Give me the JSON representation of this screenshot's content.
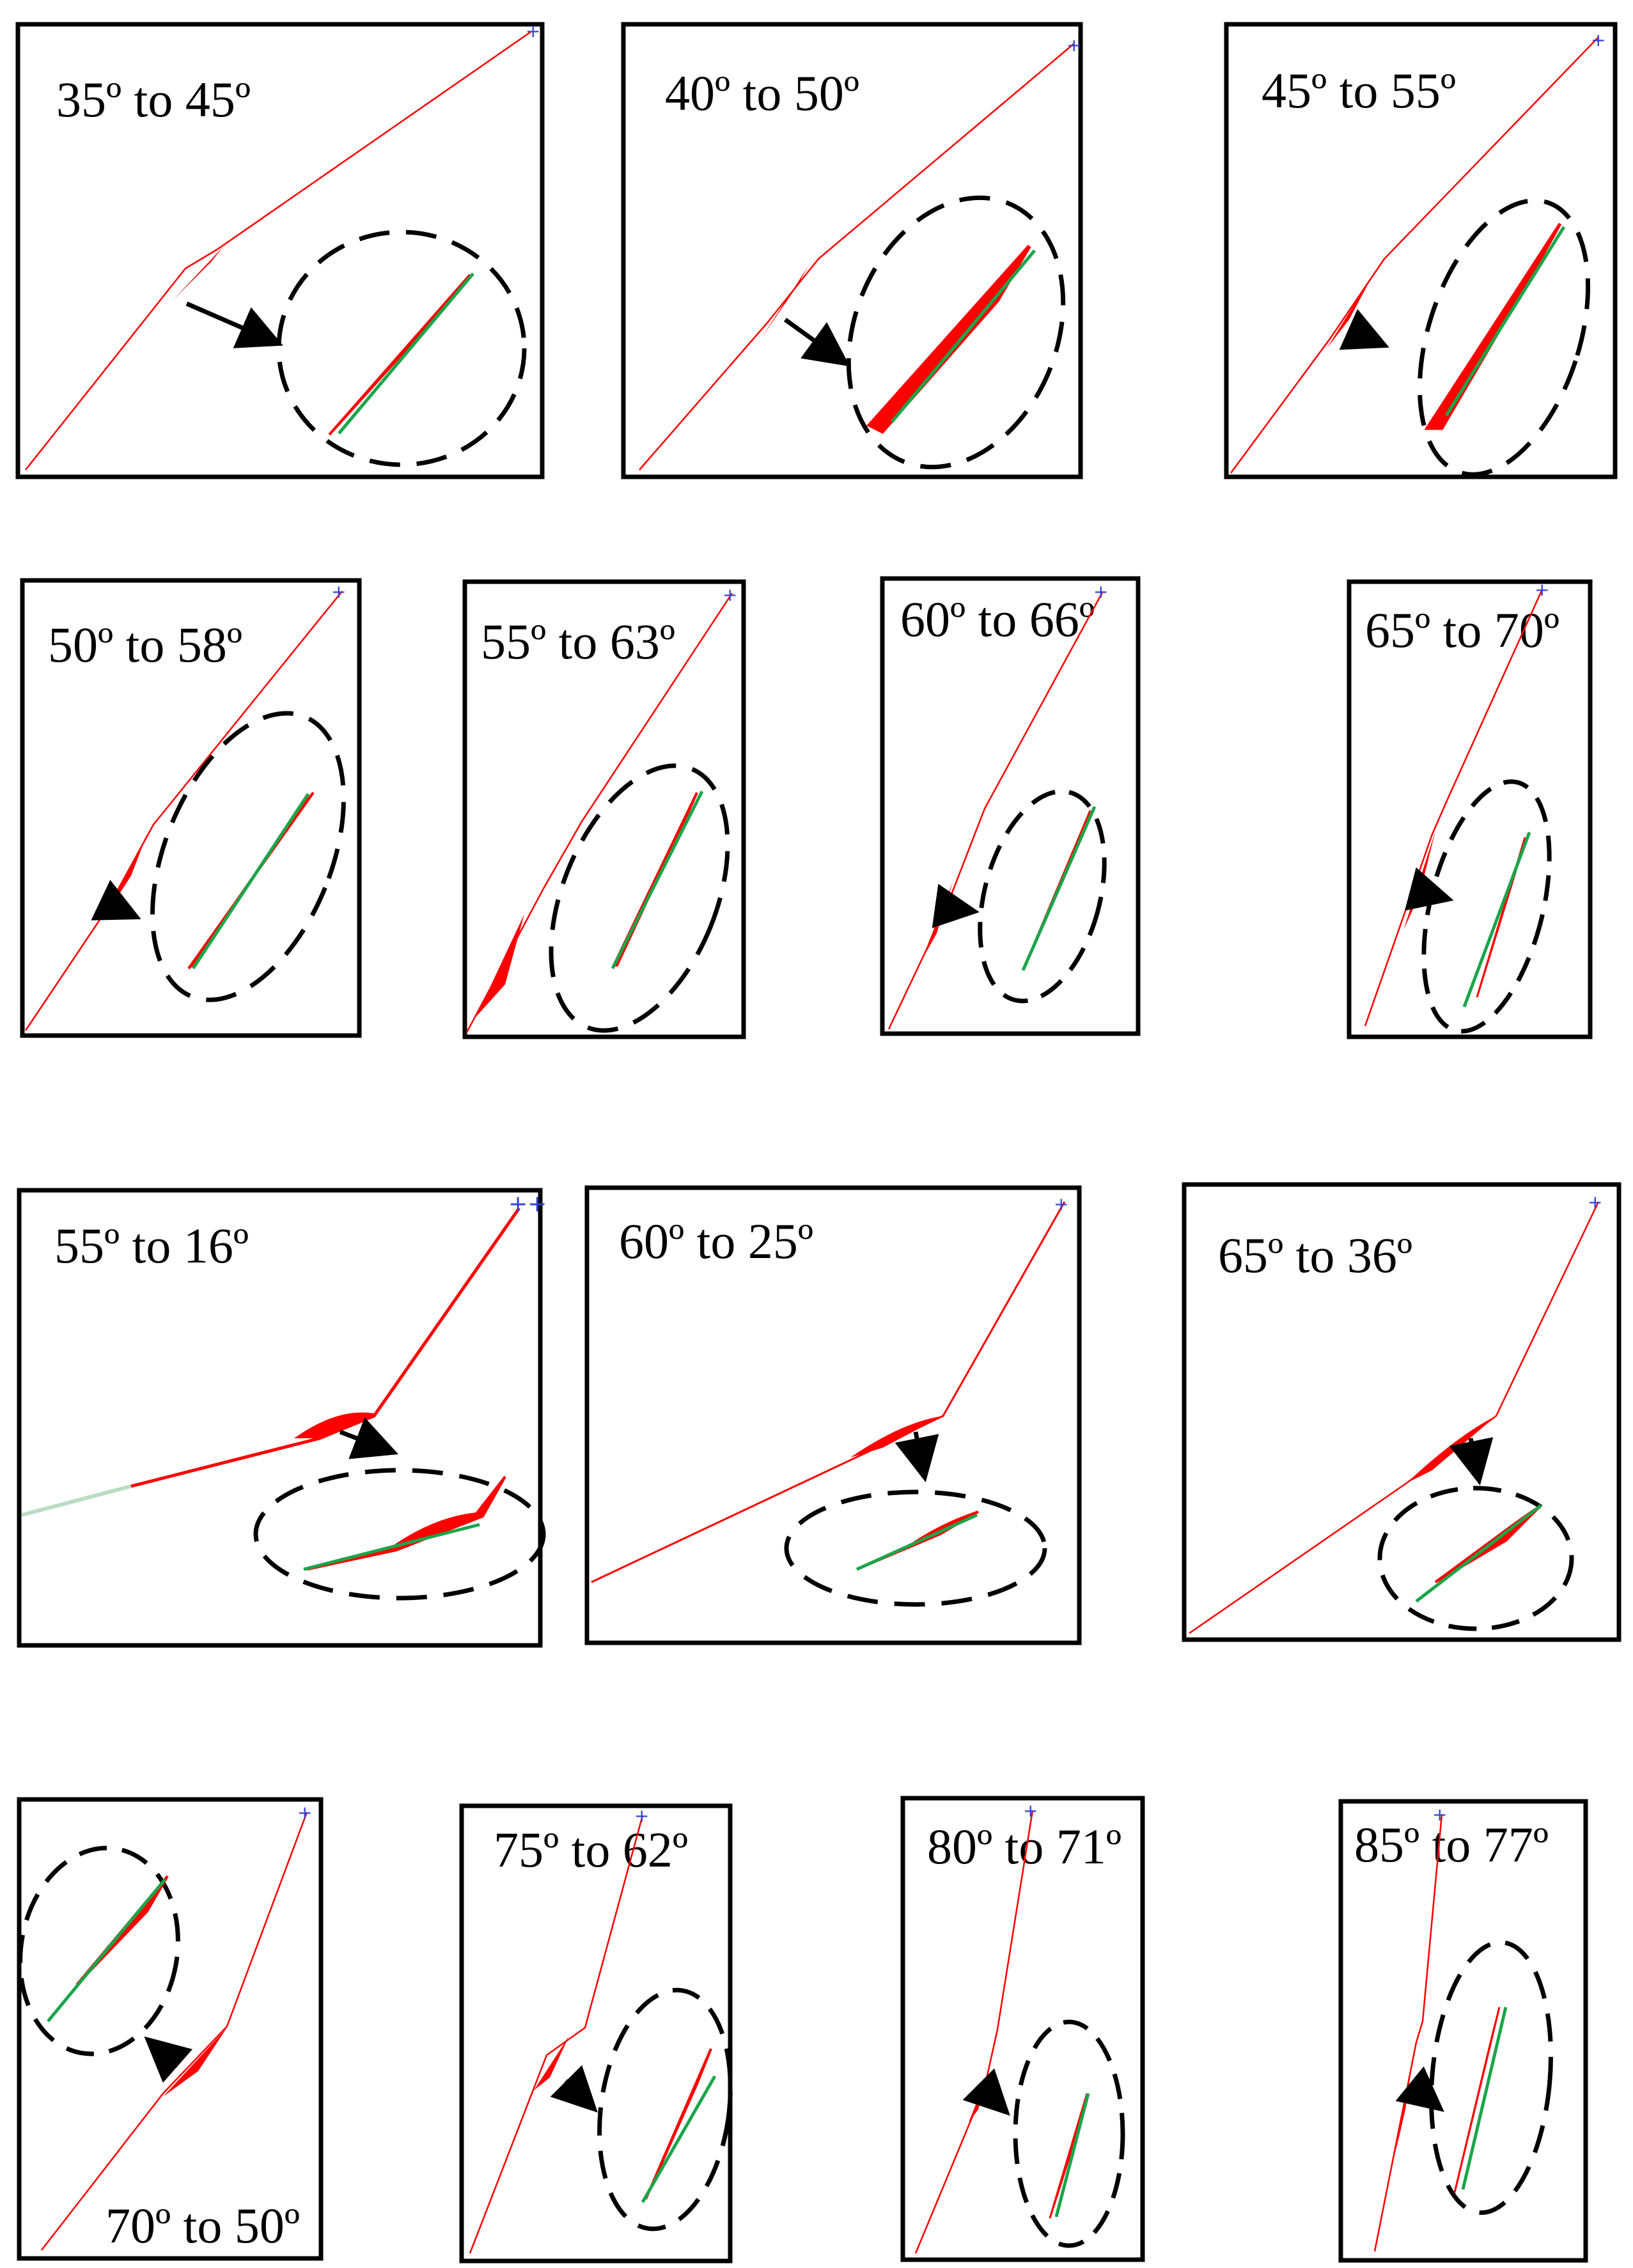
{
  "colors": {
    "frame": "#000000",
    "profile": "#ff0000",
    "fit_line": "#1aa54a",
    "faded_profile": "#b9dcc3",
    "marker": "#3344cc"
  },
  "panels": [
    {
      "id": "p1",
      "label": "35º to 45º"
    },
    {
      "id": "p2",
      "label": "40º to 50º"
    },
    {
      "id": "p3",
      "label": "45º to 55º"
    },
    {
      "id": "p4",
      "label": "50º to 58º"
    },
    {
      "id": "p5",
      "label": "55º to 63º"
    },
    {
      "id": "p6",
      "label": "60º to 66º"
    },
    {
      "id": "p7",
      "label": "65º to 70º"
    },
    {
      "id": "p8",
      "label": "55º to 16º"
    },
    {
      "id": "p9",
      "label": "60º to 25º"
    },
    {
      "id": "p10",
      "label": "65º to 36º"
    },
    {
      "id": "p11",
      "label": "70º to 50º"
    },
    {
      "id": "p12",
      "label": "75º to 62º"
    },
    {
      "id": "p13",
      "label": "80º to 71º"
    },
    {
      "id": "p14",
      "label": "85º to 77º"
    }
  ]
}
